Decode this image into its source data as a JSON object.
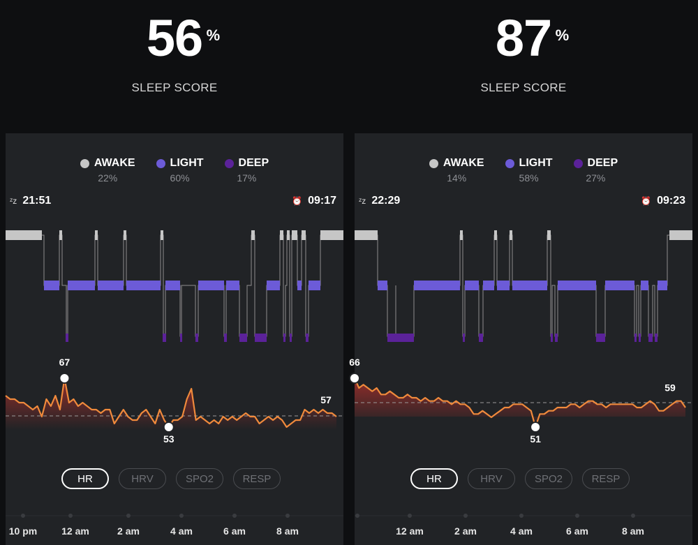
{
  "colors": {
    "awake": "#c6c6c6",
    "light": "#6c5bd8",
    "deep": "#5b2299",
    "hr_line": "#f08a3c",
    "hr_fill": "#b9312c"
  },
  "scores": [
    {
      "value": "56",
      "unit": "%",
      "label": "SLEEP SCORE"
    },
    {
      "value": "87",
      "unit": "%",
      "label": "SLEEP SCORE"
    }
  ],
  "panels": [
    {
      "legend": [
        {
          "name": "AWAKE",
          "pct": "22%"
        },
        {
          "name": "LIGHT",
          "pct": "60%"
        },
        {
          "name": "DEEP",
          "pct": "17%"
        }
      ],
      "sleep_icon": "zzz-icon",
      "alarm_icon": "alarm-clock-icon",
      "bedtime": "21:51",
      "wake_time": "09:17",
      "tabs": [
        "HR",
        "HRV",
        "SPO2",
        "RESP"
      ],
      "active_tab": "HR",
      "x_labels": [
        "10 pm",
        "12 am",
        "2 am",
        "4 am",
        "6 am",
        "8 am"
      ]
    },
    {
      "legend": [
        {
          "name": "AWAKE",
          "pct": "14%"
        },
        {
          "name": "LIGHT",
          "pct": "58%"
        },
        {
          "name": "DEEP",
          "pct": "27%"
        }
      ],
      "sleep_icon": "zzz-icon",
      "alarm_icon": "alarm-clock-icon",
      "bedtime": "22:29",
      "wake_time": "09:23",
      "tabs": [
        "HR",
        "HRV",
        "SPO2",
        "RESP"
      ],
      "active_tab": "HR",
      "x_labels": [
        "12 am",
        "2 am",
        "4 am",
        "6 am",
        "8 am"
      ]
    }
  ],
  "chart_data": [
    {
      "type": "line",
      "title": "",
      "series": [
        {
          "values": [
            62,
            61,
            61,
            60,
            60,
            59,
            58,
            59,
            56,
            61,
            59,
            62,
            58,
            67,
            60,
            61,
            59,
            60,
            59,
            58,
            58,
            57,
            58,
            58,
            54,
            56,
            58,
            56,
            55,
            55,
            57,
            58,
            56,
            54,
            58,
            55,
            53,
            55,
            55,
            56,
            61,
            64,
            55,
            56,
            55,
            54,
            55,
            54,
            56,
            55,
            56,
            55,
            56,
            57,
            56,
            56,
            54,
            55,
            56,
            55,
            56,
            55,
            53,
            54,
            55,
            55,
            58,
            57,
            58,
            57,
            58,
            57,
            57,
            56
          ]
        }
      ],
      "markers": [
        {
          "label": "67",
          "value": 67
        },
        {
          "label": "53",
          "value": 53
        },
        {
          "label": "57",
          "value": 57
        }
      ]
    },
    {
      "type": "line",
      "title": "",
      "series": [
        {
          "values": [
            66,
            63,
            64,
            63,
            62,
            63,
            61,
            61,
            62,
            61,
            60,
            60,
            61,
            60,
            60,
            59,
            60,
            59,
            59,
            60,
            59,
            59,
            58,
            59,
            58,
            58,
            57,
            55,
            55,
            56,
            55,
            54,
            55,
            56,
            57,
            57,
            58,
            58,
            58,
            57,
            56,
            51,
            55,
            55,
            56,
            56,
            57,
            57,
            57,
            58,
            58,
            57,
            58,
            59,
            59,
            58,
            58,
            57,
            58,
            58,
            58,
            58,
            58,
            58,
            57,
            57,
            58,
            59,
            58,
            56,
            56,
            57,
            58,
            59,
            59,
            57
          ]
        }
      ],
      "markers": [
        {
          "label": "66",
          "value": 66
        },
        {
          "label": "51",
          "value": 51
        },
        {
          "label": "59",
          "value": 59
        }
      ]
    }
  ]
}
